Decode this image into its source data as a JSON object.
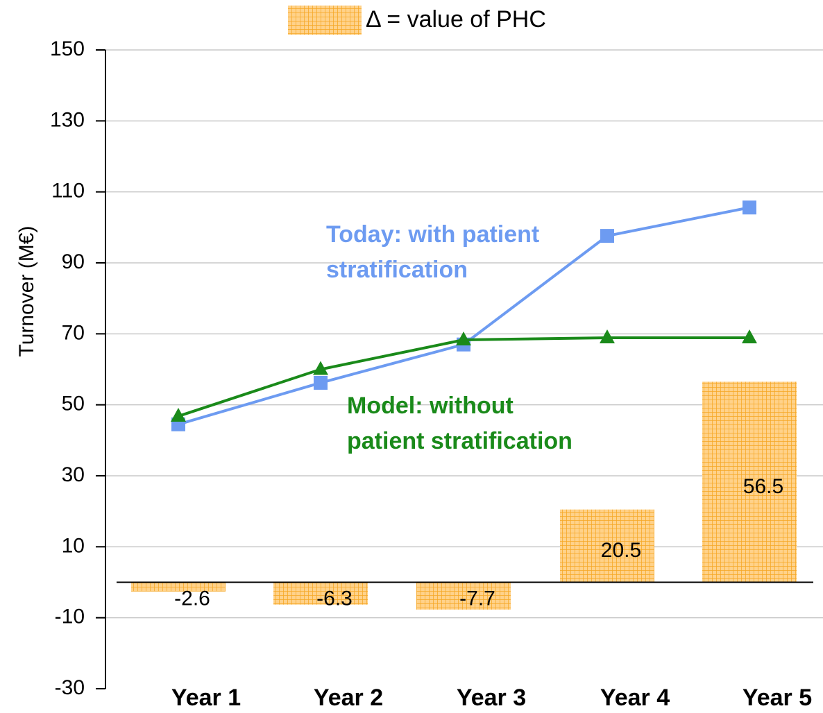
{
  "chart_data": {
    "type": "bar-line",
    "y_label": "Turnover (M€)",
    "categories": [
      "Year 1",
      "Year 2",
      "Year 3",
      "Year 4",
      "Year 5"
    ],
    "ylim": [
      -30,
      150
    ],
    "yticks": [
      -30,
      -10,
      10,
      30,
      50,
      70,
      90,
      110,
      130,
      150
    ],
    "grid": true,
    "series": [
      {
        "name": "Δ = value of PHC",
        "type": "bar",
        "color": "#ffb84d",
        "values": [
          -2.6,
          -6.3,
          -7.7,
          20.5,
          56.5
        ]
      },
      {
        "type": "line",
        "marker": "square",
        "color": "#6d9bf1",
        "values": [
          44.5,
          56.2,
          67,
          97.6,
          105.6
        ]
      },
      {
        "type": "line",
        "marker": "triangle",
        "color": "#1a8a1a",
        "values": [
          46.8,
          60,
          68.3,
          68.9,
          68.9
        ]
      }
    ],
    "annotations": [
      {
        "lines": [
          "Today: with patient",
          "stratification"
        ],
        "color": "#6d9bf1"
      },
      {
        "lines": [
          "Model: without",
          "patient stratification"
        ],
        "color": "#1a8a1a"
      }
    ]
  }
}
